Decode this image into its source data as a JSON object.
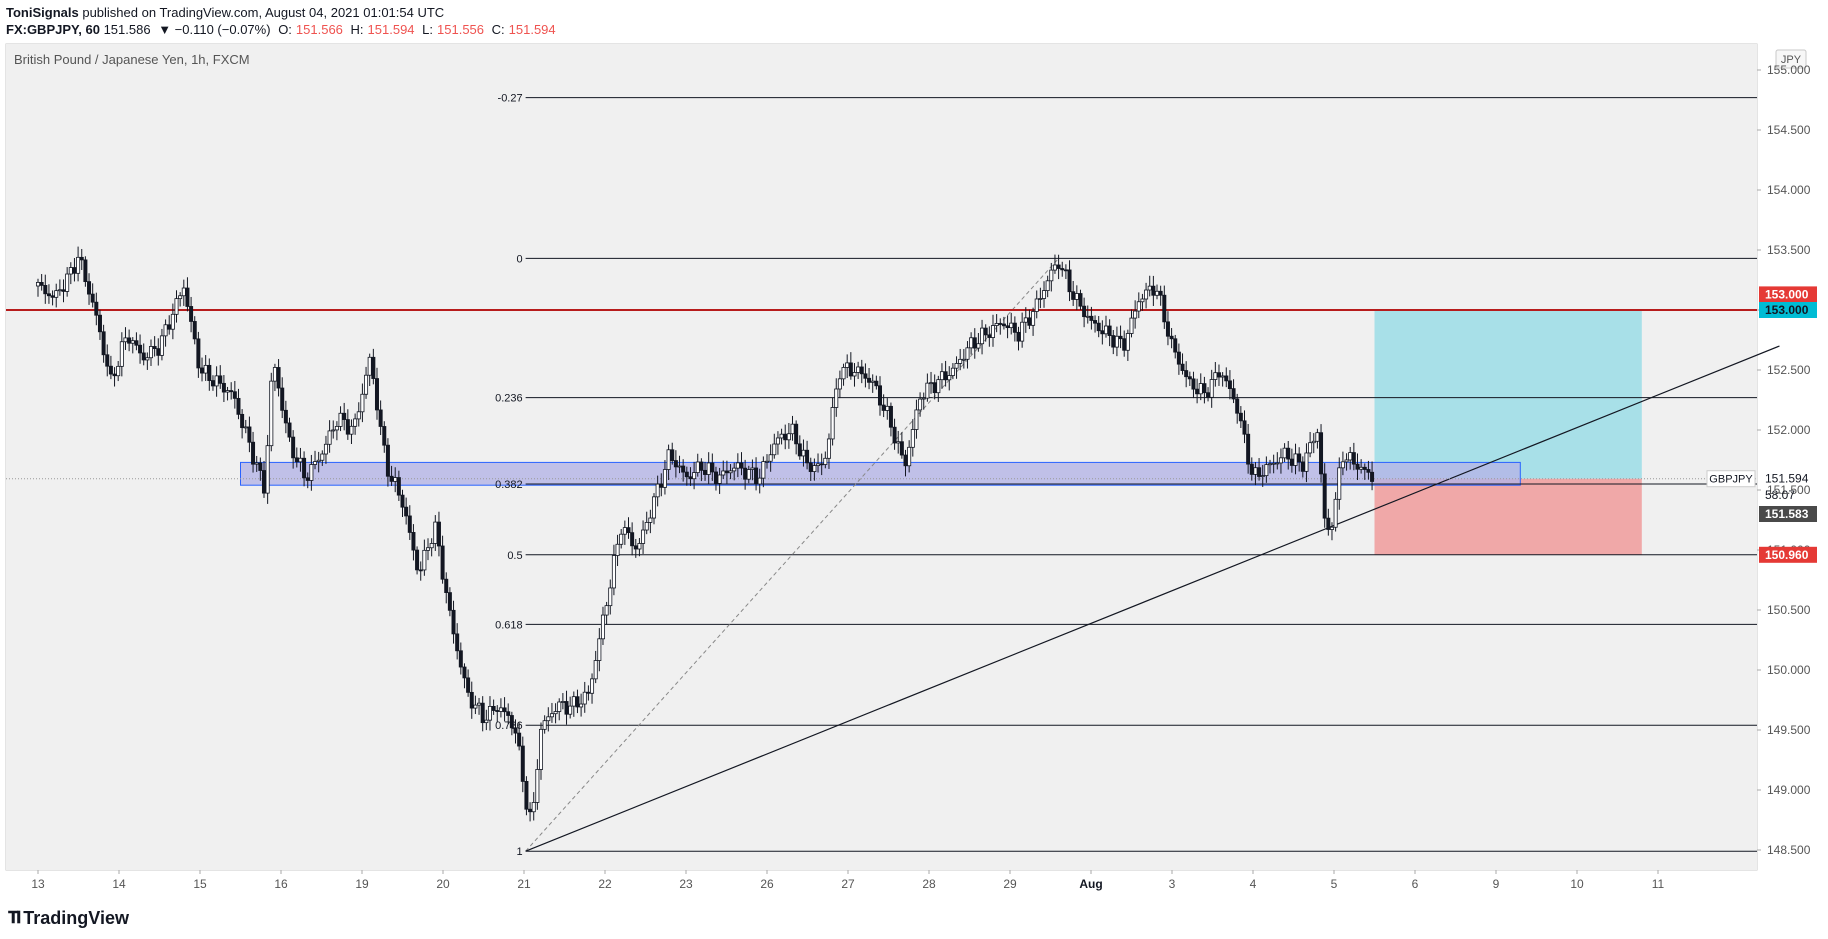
{
  "header": {
    "author": "ToniSignals",
    "published": "published on TradingView.com, August 04, 2021 01:01:54 UTC",
    "symbol_line": "FX:GBPJPY, 60",
    "last": "151.586",
    "change": "▼ −0.110 (−0.07%)",
    "o_label": "O:",
    "o_val": "151.566",
    "h_label": "H:",
    "h_val": "151.594",
    "l_label": "L:",
    "l_val": "151.556",
    "c_label": "C:",
    "c_val": "151.594"
  },
  "chart_title": "British Pound / Japanese Yen, 1h, FXCM",
  "currency_badge": "JPY",
  "footer": {
    "logo_text": "TradingView"
  },
  "colors": {
    "background": "#f0f0f0",
    "candle": "#131722",
    "resistance_line": "#b71c1c",
    "target_zone": "#a8e0e8",
    "stop_zone": "#f0a8a8",
    "demand_zone": "#b4b4e6",
    "target_badge": "#00bcd4",
    "stop_badge": "#e53935"
  },
  "chart_data": {
    "type": "candlestick",
    "symbol": "GBPJPY",
    "title": "British Pound / Japanese Yen, 1h, FXCM",
    "y_axis": {
      "ticks": [
        148.5,
        149.0,
        149.5,
        150.0,
        150.5,
        151.0,
        151.5,
        152.0,
        152.5,
        153.0,
        153.5,
        154.0,
        154.5,
        155.0
      ],
      "tick_labels": [
        "148.500",
        "149.000",
        "149.500",
        "150.000",
        "150.500",
        "151.000",
        "151.500",
        "152.000",
        "152.500",
        "153.000",
        "153.500",
        "154.000",
        "154.500",
        "155.000"
      ],
      "range": [
        148.3,
        155.3
      ]
    },
    "x_axis": {
      "tick_labels": [
        "13",
        "14",
        "15",
        "16",
        "19",
        "20",
        "21",
        "22",
        "23",
        "26",
        "27",
        "28",
        "29",
        "Aug",
        "3",
        "4",
        "5",
        "6",
        "9",
        "10",
        "11"
      ],
      "range": [
        0,
        21.5
      ]
    },
    "price_path": [
      [
        0.0,
        153.2
      ],
      [
        0.2,
        153.1
      ],
      [
        0.4,
        153.3
      ],
      [
        0.5,
        153.45
      ],
      [
        0.7,
        153.0
      ],
      [
        0.9,
        152.4
      ],
      [
        1.1,
        152.8
      ],
      [
        1.3,
        152.6
      ],
      [
        1.5,
        152.7
      ],
      [
        1.8,
        153.2
      ],
      [
        2.0,
        152.5
      ],
      [
        2.2,
        152.4
      ],
      [
        2.4,
        152.3
      ],
      [
        2.6,
        151.9
      ],
      [
        2.8,
        151.5
      ],
      [
        2.9,
        152.6
      ],
      [
        3.1,
        151.9
      ],
      [
        3.3,
        151.6
      ],
      [
        3.5,
        151.8
      ],
      [
        3.7,
        152.1
      ],
      [
        3.9,
        152.0
      ],
      [
        4.1,
        152.6
      ],
      [
        4.3,
        151.7
      ],
      [
        4.5,
        151.4
      ],
      [
        4.7,
        150.8
      ],
      [
        4.9,
        151.2
      ],
      [
        5.1,
        150.4
      ],
      [
        5.3,
        149.8
      ],
      [
        5.5,
        149.6
      ],
      [
        5.7,
        149.7
      ],
      [
        5.9,
        149.5
      ],
      [
        6.0,
        149.0
      ],
      [
        6.1,
        148.7
      ],
      [
        6.2,
        149.5
      ],
      [
        6.4,
        149.7
      ],
      [
        6.6,
        149.7
      ],
      [
        6.8,
        149.8
      ],
      [
        7.0,
        150.5
      ],
      [
        7.2,
        151.2
      ],
      [
        7.4,
        151.0
      ],
      [
        7.6,
        151.4
      ],
      [
        7.8,
        151.8
      ],
      [
        8.0,
        151.6
      ],
      [
        8.2,
        151.7
      ],
      [
        8.4,
        151.6
      ],
      [
        8.6,
        151.7
      ],
      [
        8.9,
        151.6
      ],
      [
        9.1,
        151.9
      ],
      [
        9.3,
        152.0
      ],
      [
        9.5,
        151.7
      ],
      [
        9.7,
        151.7
      ],
      [
        9.9,
        152.5
      ],
      [
        10.1,
        152.5
      ],
      [
        10.3,
        152.4
      ],
      [
        10.5,
        152.1
      ],
      [
        10.7,
        151.7
      ],
      [
        10.9,
        152.3
      ],
      [
        11.1,
        152.4
      ],
      [
        11.3,
        152.5
      ],
      [
        11.5,
        152.7
      ],
      [
        11.7,
        152.8
      ],
      [
        11.9,
        152.9
      ],
      [
        12.1,
        152.8
      ],
      [
        12.3,
        153.0
      ],
      [
        12.5,
        153.3
      ],
      [
        12.6,
        153.4
      ],
      [
        12.8,
        153.1
      ],
      [
        13.0,
        152.9
      ],
      [
        13.2,
        152.8
      ],
      [
        13.4,
        152.7
      ],
      [
        13.6,
        153.1
      ],
      [
        13.8,
        153.2
      ],
      [
        14.0,
        152.7
      ],
      [
        14.2,
        152.4
      ],
      [
        14.4,
        152.3
      ],
      [
        14.6,
        152.5
      ],
      [
        14.8,
        152.2
      ],
      [
        15.0,
        151.6
      ],
      [
        15.2,
        151.7
      ],
      [
        15.4,
        151.8
      ],
      [
        15.6,
        151.7
      ],
      [
        15.8,
        152.0
      ],
      [
        15.9,
        151.1
      ],
      [
        16.0,
        151.3
      ],
      [
        16.1,
        151.8
      ],
      [
        16.3,
        151.7
      ],
      [
        16.5,
        151.59
      ]
    ],
    "fibonacci": {
      "levels": [
        {
          "label": "-0.27",
          "price": 154.77
        },
        {
          "label": "0",
          "price": 153.43
        },
        {
          "label": "0.236",
          "price": 152.27
        },
        {
          "label": "0.382",
          "price": 151.55
        },
        {
          "label": "0.5",
          "price": 150.96
        },
        {
          "label": "0.618",
          "price": 150.38
        },
        {
          "label": "0.786",
          "price": 149.54
        },
        {
          "label": "1",
          "price": 148.49
        }
      ],
      "x_start": 6.02
    },
    "resistance": {
      "price": 153.0
    },
    "demand_zone": {
      "x_start": 2.5,
      "x_end": 18.3,
      "price_top": 151.73,
      "price_bottom": 151.54
    },
    "trendline": {
      "x1": 6.02,
      "p1": 148.49,
      "x2": 21.5,
      "p2": 152.7
    },
    "fib_diagonal": {
      "x1": 6.02,
      "p1": 148.49,
      "x2": 12.6,
      "p2": 153.43
    },
    "position": {
      "x_start": 16.5,
      "x_end": 19.8,
      "entry": 151.594,
      "target": 153.0,
      "stop": 150.96
    },
    "price_labels": [
      {
        "text": "153.000",
        "price": 153.13,
        "style": "stop"
      },
      {
        "text": "153.000",
        "price": 153.0,
        "style": "target"
      },
      {
        "text": "151.594",
        "price": 151.594,
        "style": "plain"
      },
      {
        "text": "58:07",
        "price": 151.46,
        "style": "plain"
      },
      {
        "text": "151.583",
        "price": 151.3,
        "style": "dark"
      },
      {
        "text": "150.960",
        "price": 150.96,
        "style": "stop"
      }
    ],
    "last_price_label": "GBPJPY"
  }
}
